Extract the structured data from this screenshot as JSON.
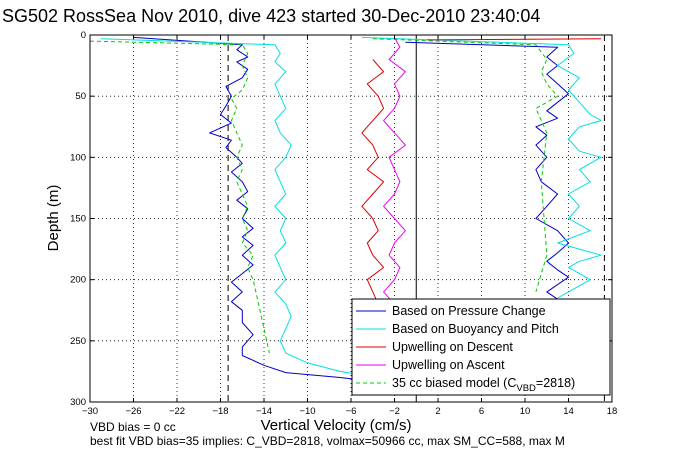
{
  "chart_data": {
    "type": "line",
    "title": "SG502 RossSea Nov 2010, dive 423 started 30-Dec-2010 23:40:04",
    "xlabel": "Vertical Velocity (cm/s)",
    "ylabel": "Depth (m)",
    "xlim": [
      -30,
      18
    ],
    "ylim": [
      0,
      300
    ],
    "y_reversed": true,
    "xticks": [
      -30,
      -26,
      -22,
      -18,
      -14,
      -10,
      -6,
      -2,
      2,
      6,
      10,
      14,
      18
    ],
    "yticks": [
      0,
      50,
      100,
      150,
      200,
      250,
      300
    ],
    "grid": true,
    "legend_position": "lower-right",
    "reference_lines": [
      {
        "x": -17.3,
        "style": "dashed",
        "color": "#000000"
      },
      {
        "x": 0.0,
        "style": "solid",
        "color": "#000000"
      },
      {
        "x": 17.3,
        "style": "dashed",
        "color": "#000000"
      }
    ],
    "series": [
      {
        "name": "Based on Pressure Change",
        "color": "#0000cc",
        "style": "solid",
        "segments": [
          {
            "x": [
              -26,
              -16,
              -16.5,
              -15.5,
              -16.5,
              -15.5,
              -16,
              -17.5,
              -17,
              -17.5,
              -18,
              -17,
              -19,
              -17,
              -17.5,
              -16.5,
              -16,
              -17,
              -16,
              -15.5,
              -16.5,
              -15.5,
              -16,
              -15,
              -16,
              -15,
              -16,
              -15,
              -16,
              -17,
              -16,
              -17,
              -16,
              -16,
              -15,
              -16,
              -16,
              -14,
              -12,
              -7,
              -5
            ],
            "y": [
              2,
              8,
              12,
              18,
              22,
              28,
              35,
              42,
              50,
              58,
              65,
              72,
              80,
              86,
              92,
              100,
              105,
              112,
              120,
              128,
              135,
              142,
              150,
              158,
              165,
              172,
              180,
              188,
              195,
              202,
              210,
              218,
              225,
              235,
              245,
              255,
              262,
              270,
              276,
              280,
              282
            ]
          },
          {
            "x": [
              -1,
              13,
              12,
              13,
              12,
              13,
              14,
              13,
              12,
              13,
              11,
              12,
              11,
              12,
              11,
              11.5,
              13,
              12,
              11,
              13,
              14,
              13,
              12,
              13,
              14,
              13,
              12,
              13
            ],
            "y": [
              6,
              10,
              18,
              25,
              32,
              40,
              48,
              55,
              62,
              68,
              75,
              82,
              90,
              100,
              110,
              120,
              130,
              140,
              150,
              160,
              170,
              178,
              185,
              192,
              198,
              204,
              210,
              216
            ]
          }
        ]
      },
      {
        "name": "Based on Buoyancy and Pitch",
        "color": "#00e0e0",
        "style": "solid",
        "segments": [
          {
            "x": [
              -29,
              -13,
              -12.5,
              -13,
              -12,
              -13,
              -12.5,
              -12,
              -13,
              -12.5,
              -11.5,
              -12,
              -13,
              -12.5,
              -12,
              -13,
              -12,
              -12.5,
              -12,
              -13,
              -12.5,
              -12,
              -13,
              -12,
              -11.5,
              -12,
              -12.5,
              -12,
              -10,
              -7,
              -5
            ],
            "y": [
              3,
              8,
              15,
              22,
              30,
              40,
              50,
              60,
              70,
              80,
              90,
              100,
              110,
              120,
              130,
              140,
              150,
              160,
              170,
              180,
              190,
              200,
              210,
              220,
              230,
              240,
              250,
              260,
              268,
              275,
              278
            ]
          },
          {
            "x": [
              -5,
              14,
              14.5,
              13,
              15,
              14,
              15,
              16,
              17,
              15,
              14,
              15,
              17,
              15,
              16,
              14,
              15,
              14,
              15,
              16,
              13,
              15,
              17,
              15,
              14,
              16,
              15,
              13
            ],
            "y": [
              2,
              8,
              15,
              25,
              35,
              45,
              55,
              65,
              70,
              75,
              85,
              95,
              100,
              110,
              120,
              130,
              140,
              150,
              155,
              160,
              170,
              175,
              180,
              185,
              190,
              200,
              205,
              215
            ]
          }
        ]
      },
      {
        "name": "Upwelling on Descent",
        "color": "#dd0000",
        "style": "solid",
        "segments": [
          {
            "x": [
              -4,
              -3,
              -4.5,
              -3.5,
              -3,
              -4,
              -5,
              -4,
              -3.5,
              -4.5,
              -3,
              -4,
              -5,
              -4,
              -3.5,
              -4.5,
              -4,
              -3,
              -4.5,
              -4,
              -3.5,
              -5,
              -4,
              -3
            ],
            "y": [
              20,
              30,
              40,
              50,
              60,
              70,
              80,
              90,
              100,
              110,
              120,
              130,
              140,
              150,
              160,
              170,
              180,
              190,
              200,
              210,
              220,
              230,
              240,
              250
            ]
          },
          {
            "x": [
              1,
              17
            ],
            "y": [
              4,
              3
            ]
          }
        ]
      },
      {
        "name": "Upwelling on Ascent",
        "color": "#ee00ee",
        "style": "solid",
        "segments": [
          {
            "x": [
              -2,
              -1.5,
              -2.5,
              -1,
              -2,
              -1.5,
              -2,
              -3,
              -2,
              -1,
              -2.5,
              -2,
              -1.5,
              -2,
              -3,
              -2,
              -1,
              -2,
              -2.5,
              -1.5,
              -2,
              -3,
              -2,
              -1.5,
              -2
            ],
            "y": [
              2,
              10,
              20,
              30,
              40,
              50,
              60,
              70,
              80,
              90,
              100,
              110,
              120,
              130,
              140,
              150,
              160,
              170,
              180,
              190,
              200,
              210,
              220,
              230,
              240
            ]
          }
        ]
      },
      {
        "name": "35 cc biased model (C_VBD=2818)",
        "color": "#00cc00",
        "style": "dashed",
        "segments": [
          {
            "x": [
              -30,
              -16,
              -15.5,
              -16,
              -15.5,
              -16,
              -17,
              -16.5,
              -17,
              -16.5,
              -16,
              -16.5,
              -16,
              -16.5,
              -16,
              -15.5,
              -16,
              -15.5,
              -16,
              -15,
              -15.5,
              -15,
              -14.5,
              -14,
              -13.5
            ],
            "y": [
              5,
              8,
              15,
              25,
              35,
              45,
              52,
              60,
              70,
              80,
              90,
              100,
              110,
              120,
              130,
              140,
              150,
              160,
              170,
              180,
              190,
              200,
              220,
              240,
              260
            ]
          },
          {
            "x": [
              -4,
              11,
              12,
              11.5,
              12,
              13,
              12,
              11,
              12,
              11.5,
              12,
              11
            ],
            "y": [
              3,
              8,
              20,
              30,
              40,
              50,
              55,
              60,
              80,
              120,
              180,
              210
            ]
          }
        ]
      }
    ],
    "legend": [
      {
        "label": "Based on Pressure Change"
      },
      {
        "label": "Based on Buoyancy and Pitch"
      },
      {
        "label": "Upwelling on Descent"
      },
      {
        "label": "Upwelling on Ascent"
      },
      {
        "label_main": "35 cc biased model (C",
        "label_sub": "VBD",
        "label_tail": "=2818)"
      }
    ],
    "annotations": [
      "VBD bias = 0 cc",
      "best fit VBD bias=35 implies: C_VBD=2818, volmax=50966 cc, max SM_CC=588, max M"
    ]
  }
}
